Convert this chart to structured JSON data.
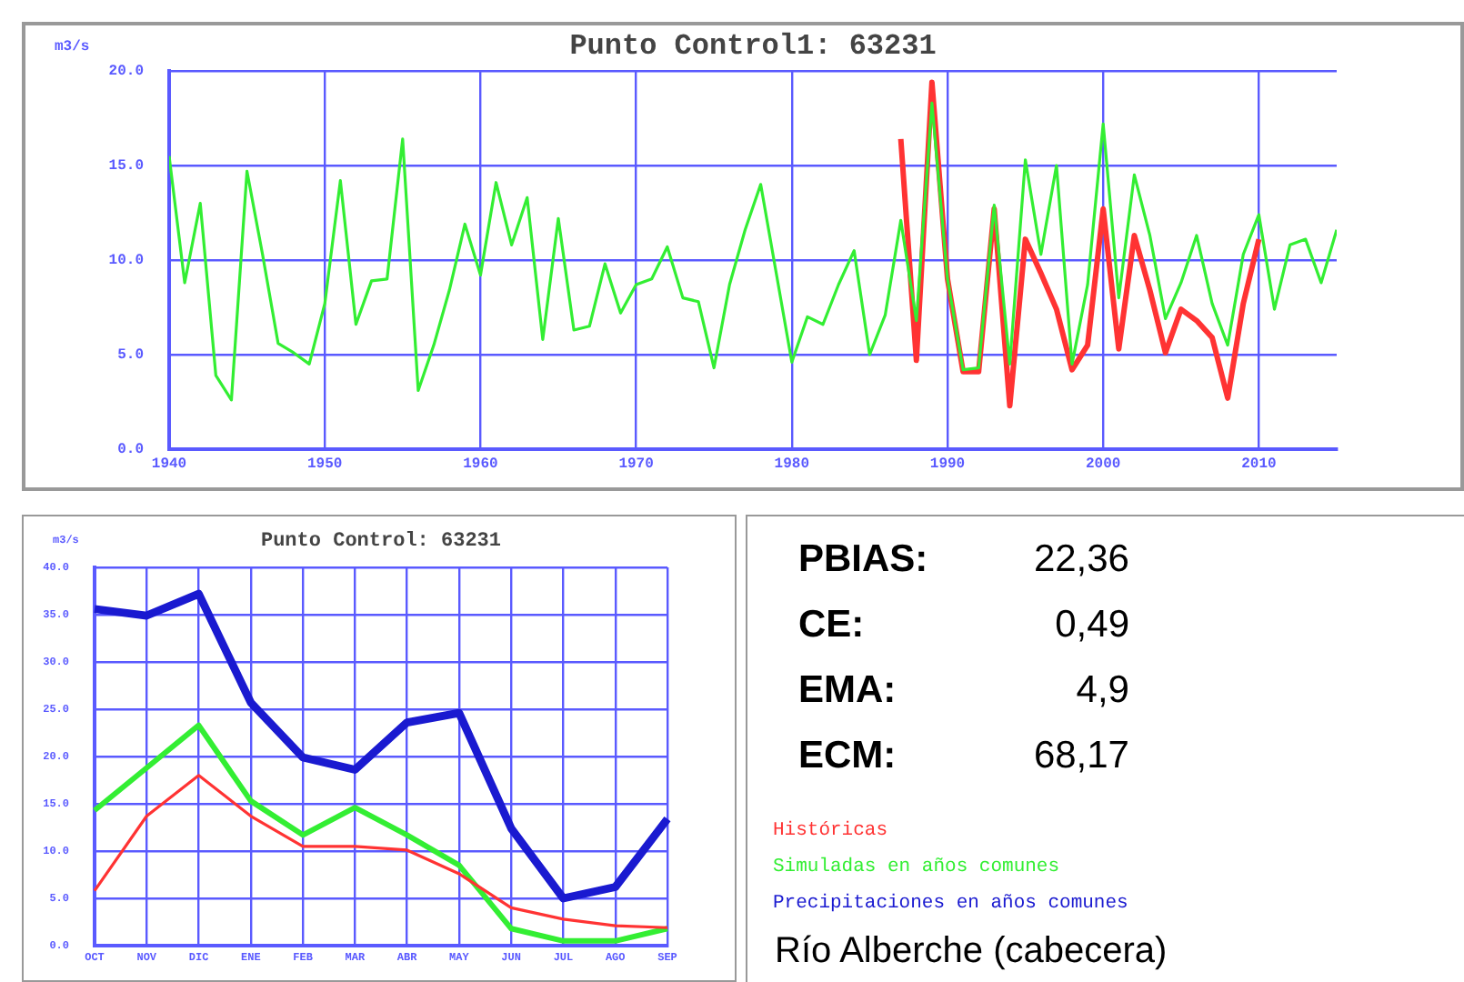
{
  "chart_data": [
    {
      "type": "line",
      "title": "Punto Control1: 63231",
      "ylabel": "m3/s",
      "x": [
        1940,
        1941,
        1942,
        1943,
        1944,
        1945,
        1946,
        1947,
        1948,
        1949,
        1950,
        1951,
        1952,
        1953,
        1954,
        1955,
        1956,
        1957,
        1958,
        1959,
        1960,
        1961,
        1962,
        1963,
        1964,
        1965,
        1966,
        1967,
        1968,
        1969,
        1970,
        1971,
        1972,
        1973,
        1974,
        1975,
        1976,
        1977,
        1978,
        1979,
        1980,
        1981,
        1982,
        1983,
        1984,
        1985,
        1986,
        1987,
        1988,
        1989,
        1990,
        1991,
        1992,
        1993,
        1994,
        1995,
        1996,
        1997,
        1998,
        1999,
        2000,
        2001,
        2002,
        2003,
        2004,
        2005,
        2006,
        2007,
        2008,
        2009,
        2010,
        2011,
        2012,
        2013,
        2014,
        2015
      ],
      "series": [
        {
          "color": "#33ee33",
          "values": [
            15.5,
            8.8,
            13.0,
            3.9,
            2.6,
            14.7,
            10.3,
            5.6,
            5.1,
            4.5,
            7.7,
            14.2,
            6.6,
            8.9,
            9.0,
            16.4,
            3.1,
            5.5,
            8.4,
            11.9,
            9.2,
            14.1,
            10.8,
            13.3,
            5.8,
            12.2,
            6.3,
            6.5,
            9.8,
            7.2,
            8.7,
            9.0,
            10.7,
            8.0,
            7.8,
            4.3,
            8.7,
            11.6,
            14.0,
            9.3,
            4.6,
            7.0,
            6.6,
            8.7,
            10.5,
            5.0,
            7.1,
            12.1,
            6.8,
            18.3,
            9.0,
            4.2,
            4.3,
            12.9,
            4.5,
            15.3,
            10.3,
            15.0,
            4.5,
            8.7,
            17.2,
            8.0,
            14.5,
            11.3,
            6.9,
            8.8,
            11.3,
            7.7,
            5.5,
            10.3,
            12.4,
            7.4,
            10.8,
            11.1,
            8.8,
            11.6
          ]
        },
        {
          "color": "#ff3333",
          "x": [
            1987,
            1988,
            1989,
            1990,
            1991,
            1992,
            1993,
            1994,
            1995,
            1996,
            1997,
            1998,
            1999,
            2000,
            2001,
            2002,
            2003,
            2004,
            2005,
            2006,
            2007,
            2008,
            2009,
            2010
          ],
          "values": [
            16.4,
            4.7,
            19.4,
            9.0,
            4.1,
            4.1,
            12.7,
            2.3,
            11.1,
            9.3,
            7.4,
            4.2,
            5.5,
            12.7,
            5.3,
            11.3,
            8.4,
            5.1,
            7.4,
            6.8,
            5.9,
            2.7,
            7.7,
            11.1
          ]
        }
      ],
      "xlim": [
        1940,
        2015
      ],
      "xticks": [
        1940,
        1950,
        1960,
        1970,
        1980,
        1990,
        2000,
        2010
      ],
      "ylim": [
        0,
        20
      ],
      "yticks": [
        {
          "value": 0,
          "label": "0.0"
        },
        {
          "value": 5,
          "label": "5.0"
        },
        {
          "value": 10,
          "label": "10.0"
        },
        {
          "value": 15,
          "label": "15.0"
        },
        {
          "value": 20,
          "label": "20.0"
        }
      ],
      "grid": true,
      "marker": "none"
    },
    {
      "type": "line",
      "title": "Punto Control: 63231",
      "ylabel": "m3/s",
      "categories": [
        "OCT",
        "NOV",
        "DIC",
        "ENE",
        "FEB",
        "MAR",
        "ABR",
        "MAY",
        "JUN",
        "JUL",
        "AGO",
        "SEP"
      ],
      "series": [
        {
          "name": "Históricas",
          "color": "#ff3333",
          "values": [
            5.8,
            13.7,
            18.0,
            13.7,
            10.5,
            10.5,
            10.1,
            7.6,
            4.0,
            2.8,
            2.1,
            1.9
          ]
        },
        {
          "name": "Simuladas en años comunes",
          "color": "#33ee33",
          "values": [
            14.3,
            18.8,
            23.3,
            15.3,
            11.7,
            14.6,
            11.7,
            8.5,
            1.8,
            0.5,
            0.5,
            1.8
          ]
        },
        {
          "name": "Precipitaciones en años comunes",
          "color": "#1a1ad0",
          "values": [
            35.6,
            34.9,
            37.2,
            25.7,
            19.9,
            18.6,
            23.6,
            24.6,
            12.4,
            5.0,
            6.2,
            13.4
          ]
        }
      ],
      "ylim": [
        0,
        40
      ],
      "yticks": [
        {
          "value": 0,
          "label": "0.0"
        },
        {
          "value": 5,
          "label": "5.0"
        },
        {
          "value": 10,
          "label": "10.0"
        },
        {
          "value": 15,
          "label": "15.0"
        },
        {
          "value": 20,
          "label": "20.0"
        },
        {
          "value": 25,
          "label": "25.0"
        },
        {
          "value": 30,
          "label": "30.0"
        },
        {
          "value": 35,
          "label": "35.0"
        },
        {
          "value": 40,
          "label": "40.0"
        }
      ],
      "grid": true,
      "marker": "none",
      "legend": "right"
    },
    {
      "type": "other",
      "annotations": [
        "PBIAS:",
        "22,36",
        "CE:",
        "0,49",
        "EMA:",
        "4,9",
        "ECM:",
        "68,17",
        "Río Alberche (cabecera)"
      ]
    }
  ]
}
